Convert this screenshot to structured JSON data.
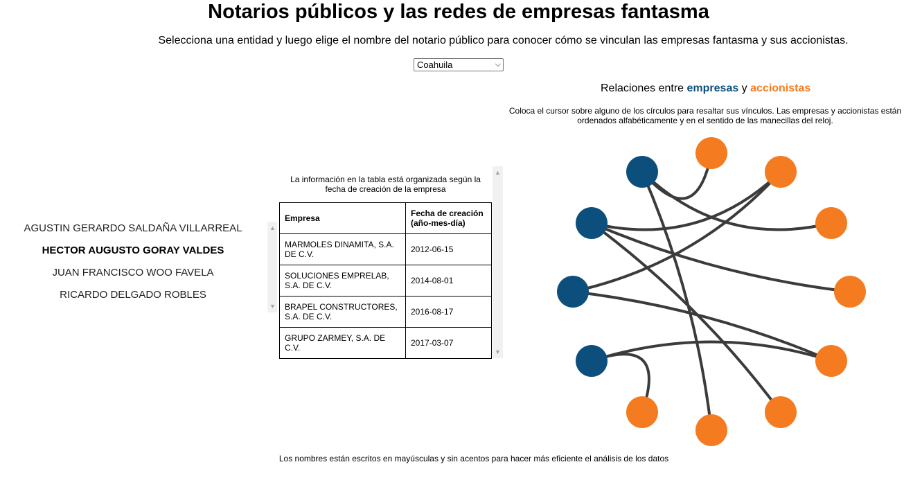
{
  "page": {
    "title": "Notarios públicos y las redes de empresas fantasma",
    "subtitle": "Selecciona una entidad y luego elige el nombre del notario público para conocer cómo se vinculan las empresas fantasma y sus accionistas.",
    "footer": "Los nombres están escritos en mayúsculas y sin acentos para hacer más eficiente el análisis de los datos"
  },
  "entity_select": {
    "value": "Coahuila"
  },
  "notaries": [
    {
      "name": "AGUSTIN GERARDO SALDAÑA VILLARREAL",
      "selected": false
    },
    {
      "name": "HECTOR AUGUSTO GORAY VALDES",
      "selected": true
    },
    {
      "name": "JUAN FRANCISCO WOO FAVELA",
      "selected": false
    },
    {
      "name": "RICARDO DELGADO ROBLES",
      "selected": false
    }
  ],
  "table": {
    "note": "La información en la tabla está organizada según la fecha de creación de la empresa",
    "headers": {
      "company": "Empresa",
      "date": "Fecha de creación (año-mes-día)"
    },
    "rows": [
      {
        "company": "MARMOLES DINAMITA, S.A. DE C.V.",
        "date": "2012-06-15"
      },
      {
        "company": "SOLUCIONES EMPRELAB, S.A. DE C.V.",
        "date": "2014-08-01"
      },
      {
        "company": "BRAPEL CONSTRUCTORES, S.A. DE C.V.",
        "date": "2016-08-17"
      },
      {
        "company": "GRUPO ZARMEY, S.A. DE C.V.",
        "date": "2017-03-07"
      }
    ]
  },
  "relations": {
    "title_prefix": "Relaciones entre ",
    "empresas_word": "empresas",
    "conjunction": " y ",
    "accionistas_word": "accionistas",
    "note": "Coloca el cursor sobre alguno de los círculos para resaltar sus vínculos. Las empresas y accionistas están ordenados alfabéticamente y en el sentido de las manecillas del reloj.",
    "colors": {
      "empresa": "#0d4f7c",
      "accionista": "#f47b20",
      "link": "#3b3b3b"
    },
    "nodes": [
      {
        "id": "e1",
        "type": "empresa"
      },
      {
        "id": "e2",
        "type": "empresa"
      },
      {
        "id": "e3",
        "type": "empresa"
      },
      {
        "id": "e4",
        "type": "empresa"
      },
      {
        "id": "a1",
        "type": "accionista"
      },
      {
        "id": "a2",
        "type": "accionista"
      },
      {
        "id": "a3",
        "type": "accionista"
      },
      {
        "id": "a4",
        "type": "accionista"
      },
      {
        "id": "a5",
        "type": "accionista"
      },
      {
        "id": "a6",
        "type": "accionista"
      },
      {
        "id": "a7",
        "type": "accionista"
      },
      {
        "id": "a8",
        "type": "accionista"
      }
    ],
    "links": [
      [
        "e1",
        "a1"
      ],
      [
        "e1",
        "a3"
      ],
      [
        "e1",
        "a7"
      ],
      [
        "e2",
        "a2"
      ],
      [
        "e2",
        "a4"
      ],
      [
        "e2",
        "a6"
      ],
      [
        "e3",
        "a5"
      ],
      [
        "e3",
        "a2"
      ],
      [
        "e4",
        "a8"
      ],
      [
        "e4",
        "a5"
      ]
    ]
  }
}
